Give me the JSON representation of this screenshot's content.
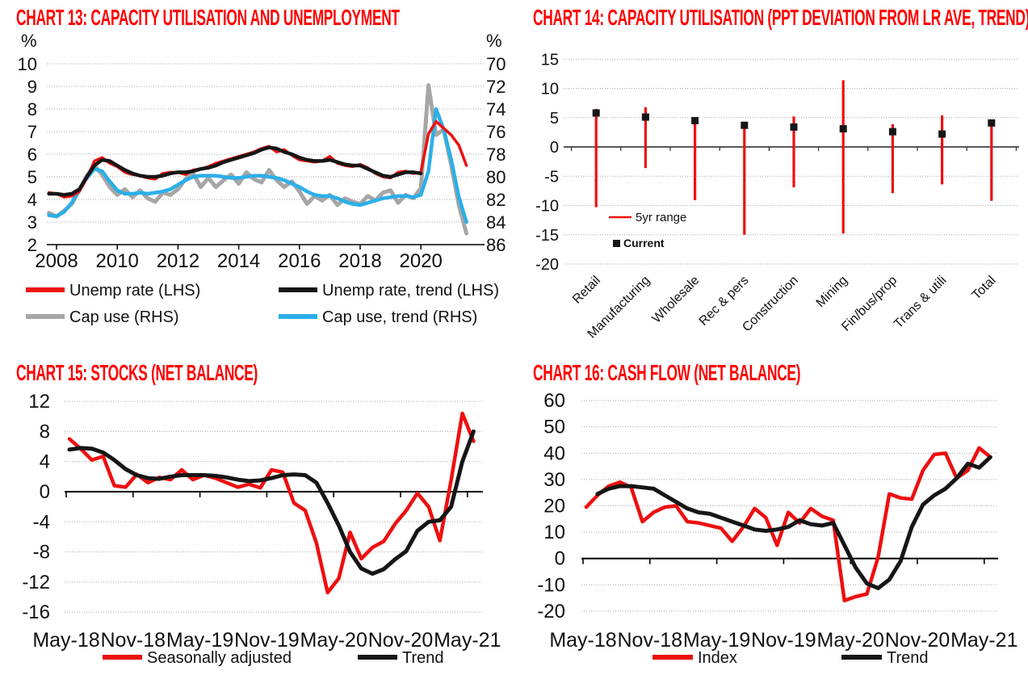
{
  "colors": {
    "red": "#ee0f0f",
    "black": "#161616",
    "gray": "#a6a6a6",
    "blue": "#2bafe8",
    "title_red": "#ff0000",
    "grid": "#a8a8a8",
    "zero_line": "#595959",
    "axis": "#000000"
  },
  "chart_data": [
    {
      "id": "chart13",
      "type": "line",
      "title": "CHART 13: CAPACITY UTILISATION AND UNEMPLOYMENT",
      "left_axis": {
        "unit_label": "%",
        "ticks": [
          10,
          9,
          8,
          7,
          6,
          5,
          4,
          3,
          2
        ],
        "min": 2,
        "max": 10
      },
      "right_axis": {
        "unit_label": "%",
        "ticks": [
          70,
          72,
          74,
          76,
          78,
          80,
          82,
          84,
          86
        ],
        "min": 70,
        "max": 86,
        "inverted": true
      },
      "x_axis": {
        "tick_labels": [
          "2008",
          "2010",
          "2012",
          "2014",
          "2016",
          "2018",
          "2020"
        ],
        "data_start_year": 2007.75,
        "data_step_years": 0.25
      },
      "series": [
        {
          "name": "Unemp rate (LHS)",
          "axis": "left",
          "color": "red",
          "width": 3.5,
          "values": [
            4.3,
            4.25,
            4.1,
            4.15,
            4.35,
            4.95,
            5.7,
            5.85,
            5.6,
            5.45,
            5.2,
            5.1,
            5.05,
            4.95,
            4.9,
            5.15,
            5.2,
            5.2,
            5.1,
            5.3,
            5.35,
            5.45,
            5.6,
            5.7,
            5.8,
            5.9,
            6.0,
            6.1,
            6.25,
            6.35,
            6.1,
            6.2,
            5.95,
            5.75,
            5.7,
            5.65,
            5.7,
            5.9,
            5.6,
            5.5,
            5.45,
            5.55,
            5.4,
            5.15,
            5.0,
            4.95,
            5.2,
            5.25,
            5.15,
            5.2,
            6.9,
            7.45,
            7.15,
            6.85,
            6.4,
            5.5
          ]
        },
        {
          "name": "Unemp rate, trend (LHS)",
          "axis": "left",
          "color": "black",
          "width": 4.5,
          "values": [
            4.25,
            4.25,
            4.2,
            4.25,
            4.45,
            5.0,
            5.5,
            5.75,
            5.7,
            5.5,
            5.3,
            5.15,
            5.05,
            5.0,
            5.0,
            5.05,
            5.15,
            5.2,
            5.2,
            5.25,
            5.35,
            5.4,
            5.5,
            5.65,
            5.75,
            5.85,
            5.95,
            6.05,
            6.2,
            6.3,
            6.25,
            6.1,
            6.0,
            5.85,
            5.75,
            5.7,
            5.7,
            5.75,
            5.65,
            5.55,
            5.5,
            5.5,
            5.35,
            5.2,
            5.05,
            5.0,
            5.1,
            5.2,
            5.2,
            5.15,
            null,
            null,
            null,
            null,
            null,
            null
          ]
        },
        {
          "name": "Cap use (RHS)",
          "axis": "right",
          "color": "gray",
          "width": 5,
          "values": [
            83.2,
            83.5,
            83.0,
            82.4,
            81.2,
            79.9,
            79.0,
            79.8,
            80.9,
            81.6,
            81.1,
            81.8,
            81.2,
            81.9,
            82.2,
            81.4,
            81.6,
            81.1,
            80.2,
            79.7,
            80.9,
            80.1,
            80.9,
            80.3,
            79.8,
            80.6,
            79.6,
            80.2,
            80.5,
            79.4,
            80.3,
            80.9,
            80.4,
            81.3,
            82.4,
            81.7,
            82.1,
            81.6,
            82.5,
            81.9,
            82.2,
            82.4,
            81.7,
            82.1,
            81.4,
            81.2,
            82.3,
            81.6,
            81.9,
            81.0,
            71.9,
            76.3,
            75.8,
            79.0,
            82.5,
            85.0
          ]
        },
        {
          "name": "Cap use, trend (RHS)",
          "axis": "right",
          "color": "blue",
          "width": 4.5,
          "values": [
            83.4,
            83.5,
            83.1,
            82.3,
            81.1,
            80.1,
            79.3,
            79.5,
            80.4,
            81.2,
            81.5,
            81.5,
            81.4,
            81.5,
            81.4,
            81.3,
            81.1,
            80.7,
            80.3,
            80.0,
            79.9,
            79.9,
            79.9,
            80.0,
            80.1,
            80.1,
            80.0,
            79.9,
            79.9,
            80.0,
            80.1,
            80.3,
            80.6,
            80.9,
            81.3,
            81.6,
            81.7,
            81.7,
            81.9,
            82.2,
            82.4,
            82.5,
            82.3,
            82.1,
            81.9,
            81.8,
            81.7,
            81.7,
            81.8,
            81.6,
            79.5,
            74.0,
            75.8,
            78.5,
            81.8,
            84.0
          ]
        }
      ]
    },
    {
      "id": "chart14",
      "type": "range",
      "title": "CHART 14: CAPACITY UTILISATION (PPT DEVIATION FROM LR AVE, TREND)",
      "y_axis": {
        "ticks": [
          15,
          10,
          5,
          0,
          -5,
          -10,
          -15,
          -20
        ],
        "min": -20,
        "max": 15
      },
      "categories": [
        "Retail",
        "Manufacturing",
        "Wholesale",
        "Rec & pers",
        "Construction",
        "Mining",
        "Fin/bus/prop",
        "Trans & utili",
        "Total"
      ],
      "range_high": [
        6.5,
        6.8,
        5.0,
        4.1,
        5.2,
        11.4,
        3.9,
        5.4,
        4.2
      ],
      "range_low": [
        -10.3,
        -3.6,
        -9.1,
        -15.0,
        -6.9,
        -14.8,
        -7.9,
        -6.4,
        -9.2
      ],
      "current": [
        5.8,
        5.1,
        4.5,
        3.7,
        3.4,
        3.1,
        2.6,
        2.2,
        4.1
      ],
      "legend": {
        "range_label": "5yr range",
        "current_label": "Current"
      }
    },
    {
      "id": "chart15",
      "type": "line",
      "title": "CHART 15: STOCKS (NET BALANCE)",
      "y_axis": {
        "ticks": [
          12,
          8,
          4,
          0,
          -4,
          -8,
          -12,
          -16
        ],
        "min": -16,
        "max": 12
      },
      "x_axis": {
        "tick_labels": [
          "May-18",
          "Nov-18",
          "May-19",
          "Nov-19",
          "May-20",
          "Nov-20",
          "May-21"
        ],
        "frequency": "monthly",
        "points": 37
      },
      "series": [
        {
          "name": "Seasonally adjusted",
          "color": "red",
          "width": 4.5,
          "values": [
            7.0,
            5.7,
            4.2,
            4.7,
            0.8,
            0.6,
            2.3,
            1.2,
            1.9,
            1.6,
            2.9,
            1.6,
            2.2,
            1.8,
            1.2,
            0.6,
            1.0,
            0.5,
            2.9,
            2.6,
            -1.5,
            -2.5,
            -6.8,
            -13.4,
            -11.5,
            -5.4,
            -8.9,
            -7.4,
            -6.6,
            -4.3,
            -2.5,
            -0.2,
            -2.0,
            -6.5,
            1.5,
            10.4,
            6.7
          ]
        },
        {
          "name": "Trend",
          "color": "black",
          "width": 5,
          "values": [
            5.6,
            5.8,
            5.7,
            5.2,
            4.2,
            3.0,
            2.2,
            1.8,
            1.7,
            2.0,
            2.2,
            2.2,
            2.2,
            2.1,
            1.9,
            1.6,
            1.4,
            1.5,
            1.8,
            2.2,
            2.3,
            2.2,
            1.2,
            -1.5,
            -4.5,
            -8.0,
            -10.2,
            -10.9,
            -10.3,
            -9.0,
            -7.9,
            -5.2,
            -4.0,
            -3.8,
            -2.0,
            4.0,
            8.0
          ]
        }
      ]
    },
    {
      "id": "chart16",
      "type": "line",
      "title": "CHART 16: CASH FLOW (NET BALANCE)",
      "y_axis": {
        "ticks": [
          60,
          50,
          40,
          30,
          20,
          10,
          0,
          -10,
          -20
        ],
        "min": -20,
        "max": 60
      },
      "x_axis": {
        "tick_labels": [
          "May-18",
          "Nov-18",
          "May-19",
          "Nov-19",
          "May-20",
          "Nov-20",
          "May-21"
        ],
        "frequency": "monthly",
        "points": 37
      },
      "series": [
        {
          "name": "Index",
          "color": "red",
          "width": 4.5,
          "values": [
            19.5,
            24,
            27.5,
            29,
            27,
            14,
            17.5,
            19.5,
            20,
            14,
            13.5,
            12.5,
            11.5,
            6.5,
            12,
            19,
            15.5,
            5,
            17.5,
            13.5,
            19,
            16,
            14.5,
            -16,
            -14.5,
            -13.5,
            0.5,
            24.5,
            23,
            22.5,
            33.5,
            39.5,
            40,
            30.5,
            33.5,
            42,
            38.5
          ]
        },
        {
          "name": "Trend",
          "color": "black",
          "width": 5,
          "values": [
            null,
            24.5,
            26.5,
            27.5,
            27.5,
            27,
            26.5,
            24,
            21.5,
            19,
            17.5,
            17,
            15.5,
            14,
            12.5,
            11,
            10.5,
            11,
            12,
            14.5,
            13,
            12.5,
            13.5,
            5,
            -3.5,
            -9.5,
            -11.3,
            -8,
            -1,
            12,
            20.5,
            24,
            26.5,
            30.5,
            36,
            34.5,
            38.5
          ]
        }
      ]
    }
  ]
}
